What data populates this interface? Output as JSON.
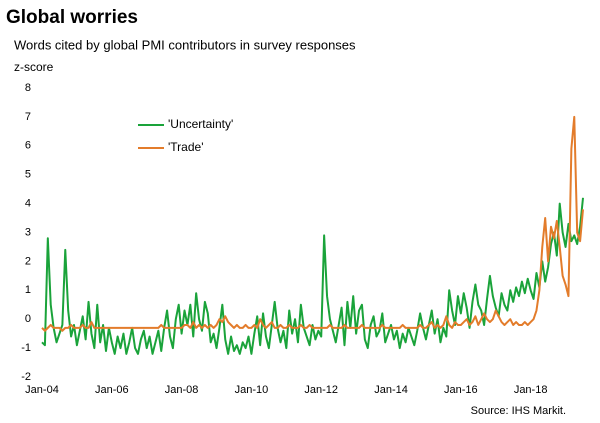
{
  "chart_data": {
    "type": "line",
    "title": "Global worries",
    "subtitle": "Words cited by global PMI contributors in survey responses",
    "y_label": "z-score",
    "source": "Source: IHS Markit.",
    "categories": [
      "Jan-04",
      null,
      null,
      null,
      null,
      null,
      null,
      null,
      null,
      null,
      null,
      null,
      null,
      null,
      null,
      null,
      null,
      null,
      null,
      null,
      null,
      null,
      null,
      null,
      "Jan-06",
      null,
      null,
      null,
      null,
      null,
      null,
      null,
      null,
      null,
      null,
      null,
      null,
      null,
      null,
      null,
      null,
      null,
      null,
      null,
      null,
      null,
      null,
      null,
      "Jan-08",
      null,
      null,
      null,
      null,
      null,
      null,
      null,
      null,
      null,
      null,
      null,
      null,
      null,
      null,
      null,
      null,
      null,
      null,
      null,
      null,
      null,
      null,
      null,
      "Jan-10",
      null,
      null,
      null,
      null,
      null,
      null,
      null,
      null,
      null,
      null,
      null,
      null,
      null,
      null,
      null,
      null,
      null,
      null,
      null,
      null,
      null,
      null,
      null,
      "Jan-12",
      null,
      null,
      null,
      null,
      null,
      null,
      null,
      null,
      null,
      null,
      null,
      null,
      null,
      null,
      null,
      null,
      null,
      null,
      null,
      null,
      null,
      null,
      null,
      "Jan-14",
      null,
      null,
      null,
      null,
      null,
      null,
      null,
      null,
      null,
      null,
      null,
      null,
      null,
      null,
      null,
      null,
      null,
      null,
      null,
      null,
      null,
      null,
      null,
      "Jan-16",
      null,
      null,
      null,
      null,
      null,
      null,
      null,
      null,
      null,
      null,
      null,
      null,
      null,
      null,
      null,
      null,
      null,
      null,
      null,
      null,
      null,
      null,
      null,
      "Jan-18",
      null,
      null,
      null,
      null,
      null,
      null,
      null,
      null,
      null,
      null,
      null,
      null,
      null,
      null,
      null,
      null,
      null,
      null
    ],
    "series": [
      {
        "name": "'Uncertainty'",
        "color": "#1aa33a",
        "values": [
          -0.8,
          -0.9,
          2.8,
          0.5,
          -0.3,
          -0.8,
          -0.5,
          -0.2,
          2.4,
          0.3,
          -0.6,
          -0.2,
          -0.9,
          -0.4,
          0.1,
          -0.7,
          0.6,
          -0.5,
          -1.0,
          0.5,
          -0.8,
          -0.2,
          -1.1,
          -0.3,
          -0.8,
          -1.2,
          -0.6,
          -1.0,
          -0.5,
          -1.2,
          -0.8,
          -0.3,
          -1.0,
          -1.2,
          -0.7,
          -0.4,
          -1.0,
          -0.6,
          -1.2,
          -0.8,
          -0.4,
          -1.1,
          -0.3,
          0.3,
          -0.6,
          -1.0,
          0.0,
          0.5,
          -0.5,
          0.3,
          -0.2,
          0.5,
          -0.6,
          0.9,
          0.0,
          -0.4,
          0.6,
          0.2,
          -0.8,
          -0.5,
          -1.0,
          -0.3,
          0.5,
          -0.7,
          -1.2,
          -0.6,
          -1.1,
          -0.9,
          -1.2,
          -0.8,
          -1.0,
          -0.6,
          -1.2,
          -0.5,
          0.1,
          -0.9,
          0.2,
          -0.6,
          -1.0,
          -0.2,
          0.6,
          -0.3,
          -0.8,
          -0.4,
          -1.0,
          0.3,
          -0.5,
          0.0,
          -0.8,
          0.5,
          -0.3,
          -0.6,
          -0.9,
          -0.2,
          -0.7,
          -0.4,
          -0.6,
          2.9,
          0.8,
          0.0,
          -0.4,
          -0.8,
          -0.2,
          0.4,
          -0.9,
          0.6,
          -0.3,
          0.8,
          -0.5,
          0.3,
          0.5,
          -0.7,
          -1.0,
          -0.2,
          0.1,
          -0.6,
          -0.4,
          0.2,
          -0.8,
          -0.5,
          -0.2,
          -0.7,
          -0.4,
          -1.0,
          -0.5,
          -0.8,
          -0.3,
          -0.6,
          -0.9,
          -0.4,
          0.2,
          -0.3,
          -0.7,
          -0.2,
          0.3,
          -0.5,
          0.0,
          -0.8,
          -0.3,
          -0.6,
          1.0,
          0.3,
          -0.2,
          0.8,
          0.2,
          0.9,
          0.4,
          -0.3,
          0.6,
          1.2,
          0.5,
          0.3,
          -0.2,
          0.7,
          1.5,
          0.8,
          0.4,
          0.1,
          0.9,
          0.5,
          0.3,
          1.0,
          0.6,
          1.1,
          0.8,
          1.3,
          0.9,
          1.4,
          1.0,
          0.7,
          1.6,
          1.1,
          2.0,
          1.3,
          1.8,
          2.6,
          3.0,
          2.2,
          4.0,
          3.0,
          2.5,
          3.3,
          2.7,
          2.9,
          2.6,
          3.2,
          4.2
        ]
      },
      {
        "name": "'Trade'",
        "color": "#e37c2b",
        "values": [
          -0.3,
          -0.4,
          -0.3,
          -0.2,
          -0.3,
          -0.3,
          -0.3,
          -0.4,
          -0.3,
          -0.3,
          -0.2,
          -0.3,
          -0.3,
          -0.3,
          -0.2,
          -0.3,
          -0.3,
          -0.1,
          -0.3,
          -0.3,
          -0.3,
          -0.3,
          -0.3,
          -0.3,
          -0.3,
          -0.3,
          -0.3,
          -0.3,
          -0.3,
          -0.3,
          -0.3,
          -0.3,
          -0.3,
          -0.3,
          -0.3,
          -0.3,
          -0.3,
          -0.3,
          -0.3,
          -0.3,
          -0.3,
          -0.2,
          -0.3,
          -0.3,
          -0.3,
          -0.3,
          -0.3,
          -0.3,
          -0.3,
          -0.2,
          -0.2,
          -0.3,
          -0.1,
          -0.3,
          -0.2,
          -0.3,
          -0.2,
          -0.3,
          -0.2,
          -0.3,
          -0.2,
          0.0,
          -0.1,
          0.1,
          -0.1,
          -0.2,
          -0.3,
          -0.2,
          -0.3,
          -0.3,
          -0.2,
          -0.3,
          -0.3,
          -0.2,
          -0.3,
          0.0,
          -0.2,
          -0.3,
          -0.2,
          -0.1,
          -0.3,
          -0.3,
          -0.2,
          -0.3,
          -0.3,
          -0.2,
          -0.3,
          -0.3,
          -0.3,
          -0.2,
          -0.3,
          -0.3,
          -0.2,
          -0.3,
          -0.3,
          -0.3,
          -0.3,
          -0.3,
          -0.3,
          -0.2,
          -0.3,
          -0.3,
          -0.3,
          -0.3,
          -0.2,
          -0.3,
          -0.3,
          -0.3,
          -0.3,
          -0.3,
          -0.2,
          -0.3,
          -0.3,
          -0.3,
          -0.3,
          -0.3,
          -0.3,
          -0.2,
          -0.3,
          -0.3,
          -0.3,
          -0.3,
          -0.3,
          -0.3,
          -0.2,
          -0.3,
          -0.3,
          -0.3,
          -0.3,
          -0.3,
          -0.2,
          -0.3,
          -0.3,
          -0.2,
          -0.1,
          -0.3,
          -0.2,
          -0.3,
          -0.2,
          0.1,
          -0.2,
          -0.3,
          -0.1,
          -0.2,
          -0.2,
          -0.1,
          0.0,
          -0.2,
          -0.1,
          0.1,
          -0.2,
          0.0,
          0.2,
          0.0,
          -0.1,
          0.0,
          0.3,
          0.1,
          -0.1,
          -0.2,
          -0.1,
          0.0,
          -0.2,
          -0.1,
          -0.2,
          -0.2,
          -0.1,
          -0.2,
          -0.1,
          0.0,
          0.3,
          1.0,
          2.5,
          3.5,
          2.0,
          3.2,
          2.8,
          3.4,
          2.5,
          1.5,
          1.2,
          0.8,
          5.9,
          7.0,
          3.0,
          2.7,
          3.8
        ]
      }
    ],
    "ylim": [
      -2,
      8
    ],
    "yticks": [
      -2,
      -1,
      0,
      1,
      2,
      3,
      4,
      5,
      6,
      7,
      8
    ],
    "legend": "upper-left",
    "grid": false
  }
}
